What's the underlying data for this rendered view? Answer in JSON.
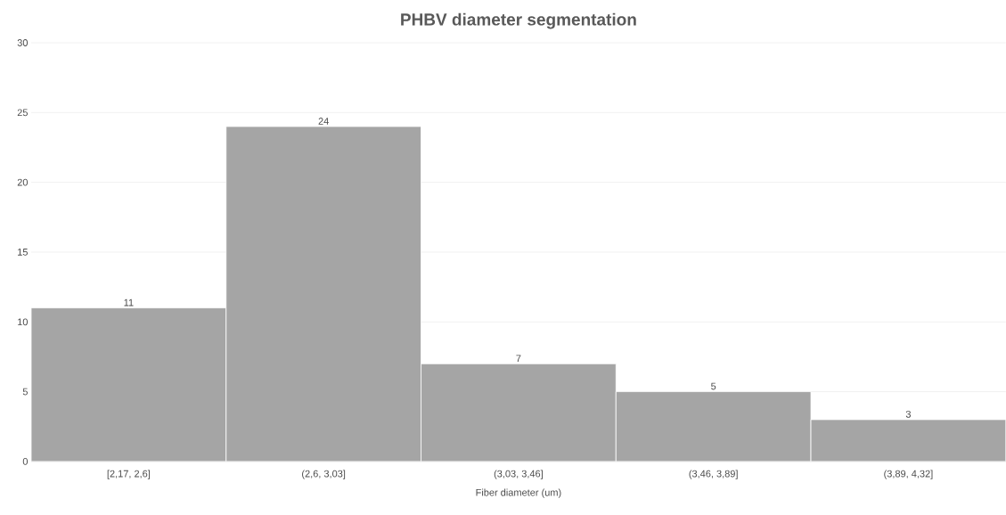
{
  "chart_data": {
    "type": "bar",
    "title": "PHBV diameter segmentation",
    "xlabel": "Fiber diameter (um)",
    "categories": [
      "[2,17, 2,6]",
      "(2,6, 3,03]",
      "(3,03, 3,46]",
      "(3,46, 3,89]",
      "(3,89, 4,32]"
    ],
    "values": [
      11,
      24,
      7,
      5,
      3
    ],
    "color": "#a5a5a5",
    "ylim": [
      0,
      30
    ],
    "yticks": [
      0,
      5,
      10,
      15,
      20,
      25,
      30
    ],
    "grid": "y",
    "data_labels": true
  }
}
